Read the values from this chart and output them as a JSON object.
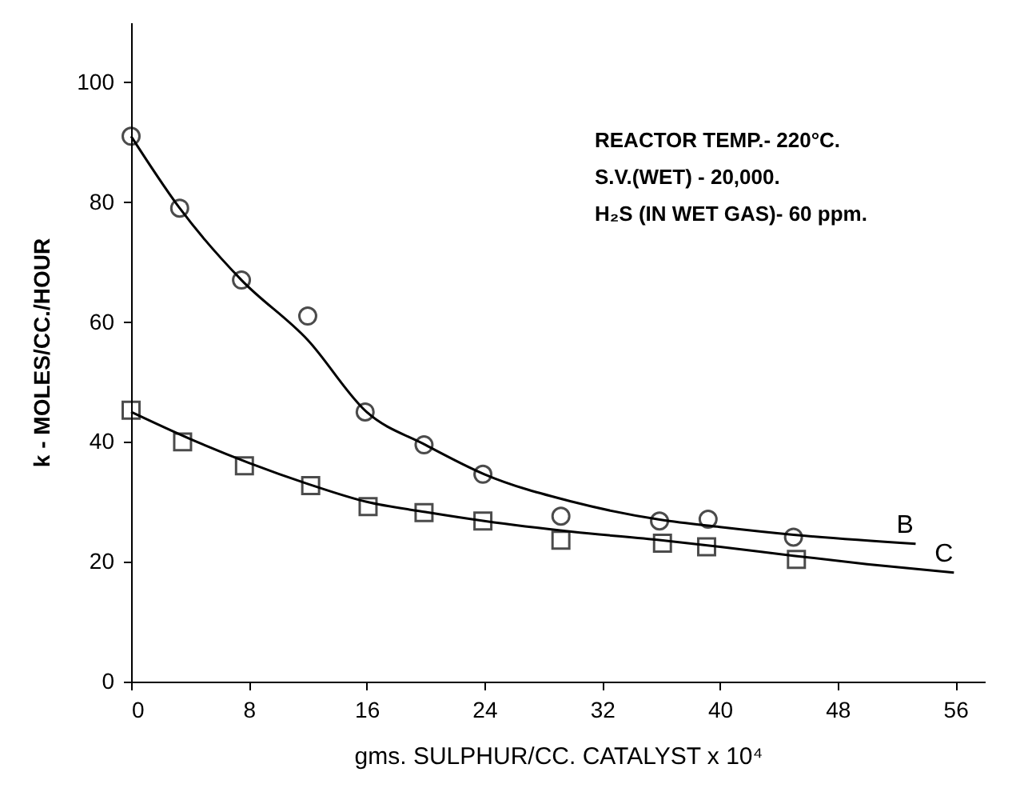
{
  "chart_data": {
    "type": "scatter",
    "xlabel": "gms. SULPHUR/CC. CATALYST x 10⁴",
    "ylabel": "k - MOLES/CC./HOUR",
    "annotations": [
      "REACTOR TEMP.- 220°C.",
      "S.V.(WET) - 20,000.",
      "H₂S (IN WET GAS)- 60 ppm."
    ],
    "xlim": [
      0,
      58
    ],
    "xticks": [
      0,
      8,
      16,
      24,
      32,
      40,
      48,
      56
    ],
    "ylim": [
      0,
      110
    ],
    "yticks": [
      0,
      20,
      40,
      60,
      80,
      100
    ],
    "grid": false,
    "series": [
      {
        "marker": "circle",
        "color": "#000000",
        "x": [
          0,
          3.3,
          7.5,
          12,
          15.9,
          19.9,
          23.9,
          29.2,
          35.9,
          39.2,
          45
        ],
        "values": [
          91,
          79,
          67,
          61,
          45,
          39.5,
          34.6,
          27.6,
          26.8,
          27.1,
          24.1
        ]
      },
      {
        "type": "line",
        "name": "B",
        "marker": "none",
        "color": "#000000",
        "x": [
          0,
          3.3,
          7.5,
          12,
          16,
          20,
          24,
          30,
          36,
          40,
          45,
          53.3
        ],
        "values": [
          91,
          79,
          67,
          57,
          45,
          39.5,
          34.6,
          30,
          27,
          25.8,
          24.5,
          23
        ]
      },
      {
        "marker": "square",
        "color": "#000000",
        "x": [
          0,
          3.5,
          7.7,
          12.2,
          16.1,
          19.9,
          23.9,
          29.2,
          36.1,
          39.1,
          45.2
        ],
        "values": [
          45.3,
          40,
          36,
          32.7,
          29.2,
          28.2,
          26.8,
          23.6,
          23.1,
          22.5,
          20.4
        ]
      },
      {
        "type": "line",
        "name": "C",
        "marker": "none",
        "color": "#000000",
        "x": [
          0,
          4,
          8,
          12,
          16,
          20,
          24,
          30,
          36,
          40,
          45,
          50,
          55.9
        ],
        "values": [
          45,
          40.5,
          36.5,
          33,
          30,
          28.3,
          26.8,
          25,
          23.6,
          22.5,
          21,
          19.6,
          18.2
        ]
      }
    ]
  }
}
